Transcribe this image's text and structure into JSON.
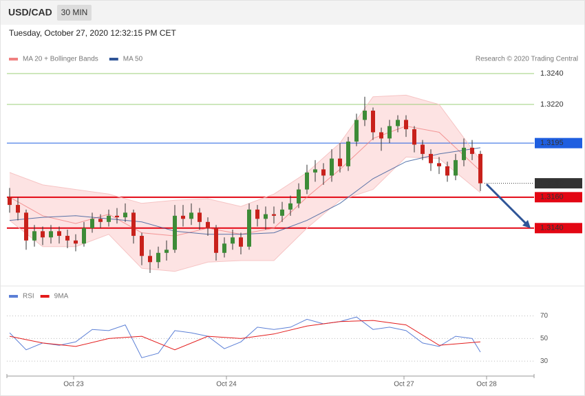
{
  "chart_data": [
    {
      "type": "candlestick",
      "title": "USD/CAD",
      "timeframe": "30 MIN",
      "subtitle": "Tuesday, October 27, 2020 12:32:15 PM CET",
      "credit": "Research © 2020 Trading Central",
      "up_color": "#3d8b37",
      "down_color": "#c8211b",
      "xlim": [
        -0.5,
        63.5
      ],
      "ylim": [
        1.3103,
        1.326
      ],
      "x": [
        0,
        1,
        2,
        3,
        4,
        5,
        6,
        7,
        8,
        9,
        10,
        11,
        12,
        13,
        14,
        15,
        16,
        17,
        18,
        19,
        20,
        21,
        22,
        23,
        24,
        25,
        26,
        27,
        28,
        29,
        30,
        31,
        32,
        33,
        34,
        35,
        36,
        37,
        38,
        39,
        40,
        41,
        42,
        43,
        44,
        45,
        46,
        47,
        48,
        49,
        50,
        51,
        52,
        53,
        54,
        55,
        56,
        57
      ],
      "open": [
        1.316,
        1.3155,
        1.315,
        1.3132,
        1.3138,
        1.3134,
        1.3138,
        1.3135,
        1.3132,
        1.313,
        1.314,
        1.3146,
        1.3144,
        1.3148,
        1.3147,
        1.315,
        1.3135,
        1.3122,
        1.3118,
        1.3124,
        1.3126,
        1.3148,
        1.3146,
        1.315,
        1.3144,
        1.314,
        1.3124,
        1.313,
        1.3134,
        1.3128,
        1.3152,
        1.3146,
        1.3149,
        1.3148,
        1.3152,
        1.3156,
        1.3165,
        1.3176,
        1.3178,
        1.3174,
        1.3185,
        1.318,
        1.3196,
        1.321,
        1.3216,
        1.3202,
        1.3198,
        1.3206,
        1.321,
        1.3204,
        1.3194,
        1.3188,
        1.3182,
        1.318,
        1.3174,
        1.3184,
        1.3192,
        1.3188
      ],
      "high": [
        1.3166,
        1.316,
        1.3152,
        1.3142,
        1.3141,
        1.3142,
        1.3141,
        1.3139,
        1.3136,
        1.3144,
        1.315,
        1.3149,
        1.3152,
        1.3153,
        1.3156,
        1.3152,
        1.3137,
        1.3126,
        1.3128,
        1.3132,
        1.3155,
        1.3155,
        1.3156,
        1.3153,
        1.3147,
        1.3142,
        1.3134,
        1.3139,
        1.3137,
        1.3156,
        1.3155,
        1.3154,
        1.3154,
        1.3157,
        1.3161,
        1.3169,
        1.3181,
        1.3184,
        1.3182,
        1.3191,
        1.3195,
        1.3199,
        1.3214,
        1.3225,
        1.3218,
        1.3205,
        1.321,
        1.3213,
        1.3213,
        1.3206,
        1.3197,
        1.3191,
        1.3186,
        1.3183,
        1.3188,
        1.3198,
        1.3197,
        1.319
      ],
      "low": [
        1.315,
        1.3145,
        1.3126,
        1.3128,
        1.3129,
        1.313,
        1.313,
        1.3127,
        1.3125,
        1.3128,
        1.3137,
        1.314,
        1.3141,
        1.3143,
        1.3144,
        1.313,
        1.3116,
        1.3111,
        1.3114,
        1.3119,
        1.3124,
        1.3141,
        1.3142,
        1.3139,
        1.3135,
        1.3119,
        1.3121,
        1.3126,
        1.3123,
        1.3126,
        1.3141,
        1.3139,
        1.3143,
        1.3144,
        1.3148,
        1.3153,
        1.3162,
        1.317,
        1.3168,
        1.317,
        1.3176,
        1.3177,
        1.3193,
        1.3206,
        1.3197,
        1.319,
        1.3195,
        1.3202,
        1.3199,
        1.3189,
        1.3184,
        1.3177,
        1.3175,
        1.317,
        1.3171,
        1.318,
        1.3184,
        1.3164
      ],
      "close": [
        1.3155,
        1.315,
        1.3132,
        1.3138,
        1.3134,
        1.3138,
        1.3135,
        1.3132,
        1.313,
        1.314,
        1.3146,
        1.3144,
        1.3148,
        1.3147,
        1.315,
        1.3135,
        1.3122,
        1.3118,
        1.3124,
        1.3126,
        1.3148,
        1.3146,
        1.315,
        1.3144,
        1.314,
        1.3124,
        1.313,
        1.3134,
        1.3128,
        1.3152,
        1.3146,
        1.3149,
        1.3148,
        1.3152,
        1.3156,
        1.3165,
        1.3176,
        1.3178,
        1.3174,
        1.3185,
        1.318,
        1.3196,
        1.321,
        1.3216,
        1.3202,
        1.3198,
        1.3206,
        1.321,
        1.3204,
        1.3194,
        1.3188,
        1.3182,
        1.318,
        1.3174,
        1.3184,
        1.3192,
        1.3188,
        1.3169
      ],
      "overlays": [
        {
          "name": "MA 20 + Bollinger Bands",
          "color": "#f08080",
          "band_color": "#fde3e3",
          "x": [
            0,
            4,
            8,
            12,
            16,
            20,
            24,
            28,
            32,
            36,
            40,
            44,
            48,
            52,
            57
          ],
          "values": [
            1.316,
            1.3148,
            1.3143,
            1.3149,
            1.3137,
            1.3135,
            1.314,
            1.3136,
            1.314,
            1.316,
            1.3178,
            1.3198,
            1.3206,
            1.3202,
            1.3177
          ],
          "upper": [
            1.3176,
            1.3168,
            1.3165,
            1.3162,
            1.3156,
            1.3158,
            1.3159,
            1.3154,
            1.3162,
            1.3176,
            1.3195,
            1.3225,
            1.3226,
            1.322,
            1.3184
          ],
          "lower": [
            1.3145,
            1.3128,
            1.3128,
            1.3136,
            1.3114,
            1.3112,
            1.3118,
            1.3119,
            1.3119,
            1.314,
            1.3158,
            1.3165,
            1.3186,
            1.3185,
            1.3163
          ]
        },
        {
          "name": "MA 50",
          "color": "#2f5597",
          "x": [
            0,
            4,
            8,
            12,
            16,
            20,
            24,
            28,
            32,
            36,
            40,
            44,
            48,
            52,
            57
          ],
          "values": [
            1.3145,
            1.3147,
            1.3148,
            1.3146,
            1.3144,
            1.3138,
            1.3136,
            1.3136,
            1.3137,
            1.3145,
            1.3156,
            1.3172,
            1.3183,
            1.3188,
            1.3192
          ]
        }
      ],
      "levels": [
        {
          "value": 1.324,
          "label": "1.3240",
          "color": "#9ccf7a",
          "text_color": "#4e9a06",
          "box": false,
          "line_width": 1
        },
        {
          "value": 1.322,
          "label": "1.3220",
          "color": "#9ccf7a",
          "text_color": "#4e9a06",
          "box": false,
          "line_width": 1
        },
        {
          "value": 1.3195,
          "label": "1.3195",
          "color": "#1f5fe0",
          "text_color": "#ffffff",
          "box": true,
          "line_width": 1
        },
        {
          "value": 1.3169,
          "label": "1.3169",
          "color": "#333333",
          "text_color": "#ffffff",
          "box": true,
          "line_width": 1,
          "dotted": true
        },
        {
          "value": 1.316,
          "label": "1.3160",
          "color": "#e30613",
          "text_color": "#ffffff",
          "box": true,
          "line_width": 2
        },
        {
          "value": 1.314,
          "label": "1.3140",
          "color": "#e30613",
          "text_color": "#ffffff",
          "box": true,
          "line_width": 2
        }
      ]
    },
    {
      "type": "line",
      "xlim": [
        -0.5,
        63.5
      ],
      "ylim": [
        18,
        94
      ],
      "yticks": [
        30,
        50,
        70
      ],
      "grid": true,
      "xticks": [
        {
          "value": 7.75,
          "label": "Oct 23"
        },
        {
          "value": 26.25,
          "label": "Oct 24"
        },
        {
          "value": 47.75,
          "label": "Oct 27"
        },
        {
          "value": 57.75,
          "label": "Oct 28"
        }
      ],
      "series": [
        {
          "name": "RSI",
          "color": "#5b7fd6",
          "x": [
            0,
            2,
            4,
            6,
            8,
            10,
            12,
            14,
            16,
            18,
            20,
            22,
            24,
            26,
            28,
            30,
            32,
            34,
            36,
            38,
            40,
            42,
            44,
            46,
            48,
            50,
            52,
            54,
            56,
            57
          ],
          "values": [
            55,
            40,
            46,
            44,
            47,
            58,
            57,
            62,
            33,
            37,
            57,
            55,
            52,
            41,
            47,
            60,
            58,
            60,
            67,
            63,
            65,
            69,
            58,
            60,
            57,
            46,
            43,
            52,
            50,
            38
          ]
        },
        {
          "name": "9MA",
          "color": "#e31a1a",
          "x": [
            0,
            4,
            8,
            12,
            16,
            20,
            24,
            28,
            32,
            36,
            40,
            44,
            48,
            52,
            57
          ],
          "values": [
            52,
            46,
            43,
            50,
            52,
            40,
            52,
            50,
            54,
            61,
            65,
            66,
            62,
            44,
            47
          ]
        }
      ]
    }
  ]
}
